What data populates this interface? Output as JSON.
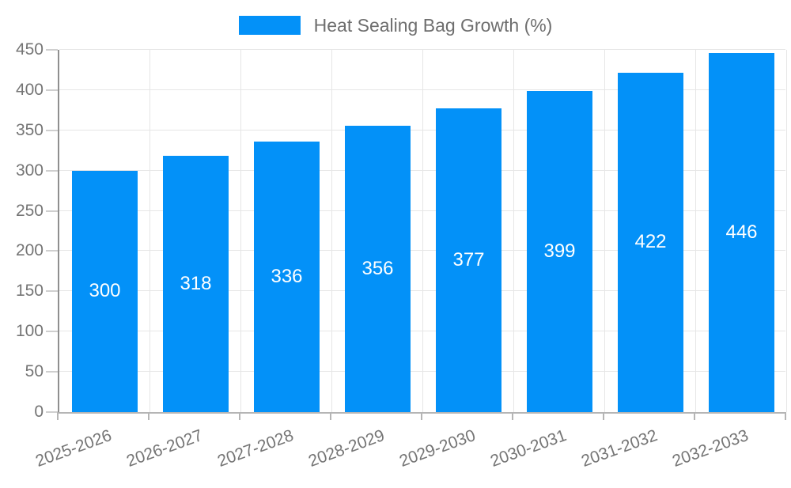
{
  "chart_data": {
    "type": "bar",
    "title": "Heat Sealing Bag Growth (%)",
    "categories": [
      "2025-2026",
      "2026-2027",
      "2027-2028",
      "2028-2029",
      "2029-2030",
      "2030-2031",
      "2031-2032",
      "2032-2033"
    ],
    "values": [
      300,
      318,
      336,
      356,
      377,
      399,
      422,
      446
    ],
    "y_ticks": [
      0,
      50,
      100,
      150,
      200,
      250,
      300,
      350,
      400,
      450
    ],
    "xlabel": "",
    "ylabel": "",
    "ylim": [
      0,
      450
    ],
    "grid": true,
    "legend_position": "top",
    "bar_labels": "inside-middle"
  },
  "colors": {
    "bar": "#0391f8",
    "grid": "#e6e6e6",
    "axis_y": "#8f8f8f",
    "axis_x": "#b5b5b5",
    "tick": "#cfcfcf",
    "axis_text": "#757575",
    "legend_text": "#6e6e6e",
    "bar_label_text": "#ffffff"
  }
}
